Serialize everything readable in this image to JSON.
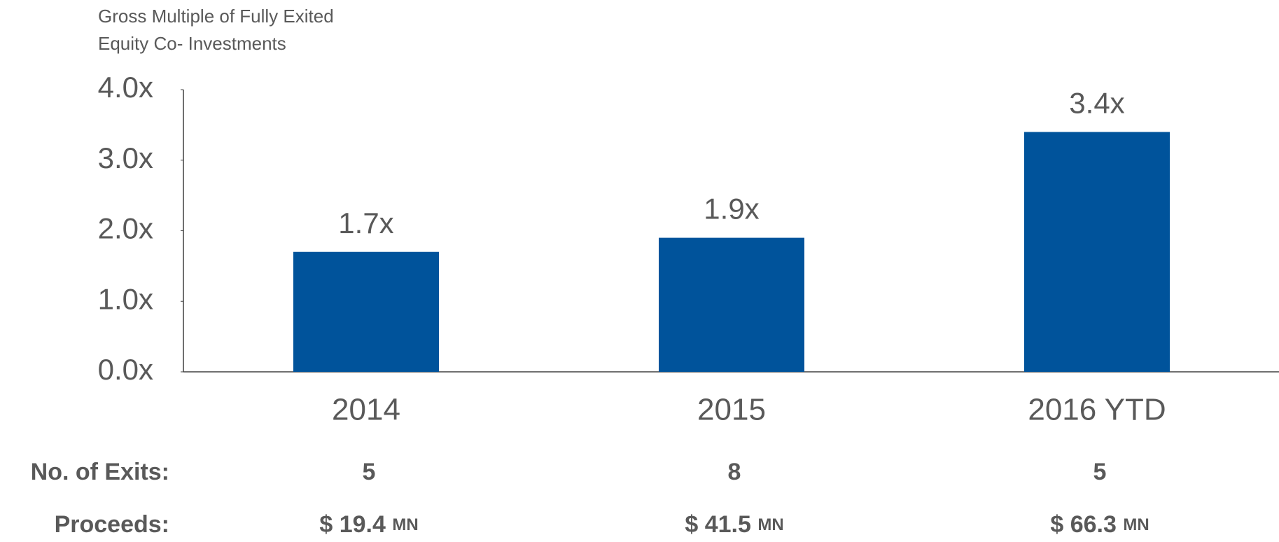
{
  "chart_data": {
    "type": "bar",
    "title_lines": [
      "Gross Multiple of Fully Exited",
      "Equity Co- Investments"
    ],
    "categories": [
      "2014",
      "2015",
      "2016 YTD"
    ],
    "values": [
      1.7,
      1.9,
      3.4
    ],
    "value_labels": [
      "1.7x",
      "1.9x",
      "3.4x"
    ],
    "color": "#00539b",
    "ylim": [
      0,
      4
    ],
    "yticks": [
      {
        "value": 0,
        "label": "0.0x"
      },
      {
        "value": 1,
        "label": "1.0x"
      },
      {
        "value": 2,
        "label": "2.0x"
      },
      {
        "value": 3,
        "label": "3.0x"
      },
      {
        "value": 4,
        "label": "4.0x"
      }
    ],
    "grid": false,
    "rows": [
      {
        "label": "No. of Exits:",
        "values": [
          5,
          8,
          5
        ]
      },
      {
        "label": "Proceeds:",
        "values": [
          "$ 19.4",
          "$ 41.5",
          "$ 66.3"
        ],
        "unit": "MN"
      }
    ]
  }
}
